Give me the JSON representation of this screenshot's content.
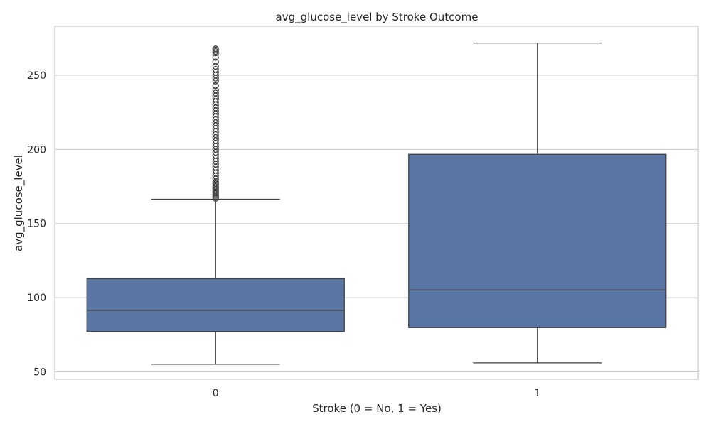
{
  "chart_data": {
    "type": "box",
    "title": "avg_glucose_level by Stroke Outcome",
    "xlabel": "Stroke (0 = No, 1 = Yes)",
    "ylabel": "avg_glucose_level",
    "ylim": [
      45,
      283
    ],
    "yticks": [
      50,
      100,
      150,
      200,
      250
    ],
    "grid": "horizontal",
    "categories": [
      "0",
      "1"
    ],
    "box_color": "#5875a4",
    "line_color": "#3f3f3f",
    "grid_color": "#cccccc",
    "boxes": [
      {
        "category": "0",
        "whisker_low": 55.1,
        "q1": 77.2,
        "median": 91.5,
        "q3": 112.8,
        "whisker_high": 166.4,
        "outliers": [
          167,
          168,
          169,
          170,
          171,
          172,
          173,
          174,
          175,
          176,
          177,
          178,
          180,
          182,
          184,
          186,
          188,
          190,
          192,
          194,
          196,
          198,
          200,
          202,
          204,
          206,
          208,
          210,
          212,
          214,
          216,
          218,
          220,
          222,
          224,
          226,
          228,
          230,
          232,
          234,
          236,
          238,
          240,
          243,
          246,
          248,
          250,
          252,
          254,
          256,
          259,
          262,
          265,
          266,
          267,
          267.8
        ]
      },
      {
        "category": "1",
        "whisker_low": 56.1,
        "q1": 79.8,
        "median": 105.2,
        "q3": 196.7,
        "whisker_high": 271.7,
        "outliers": []
      }
    ]
  }
}
